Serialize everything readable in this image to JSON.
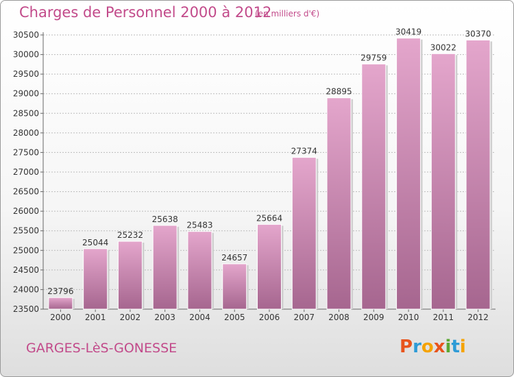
{
  "header": {
    "title": "Charges de Personnel 2000 à 2012",
    "subtitle": "(en milliers d'€)"
  },
  "footer": {
    "city": "GARGES-LèS-GONESSE",
    "logo_text": "Proxiti",
    "logo_colors": [
      "#e8541c",
      "#2e9bd6",
      "#f5a300",
      "#e8541c",
      "#5aa832",
      "#2e9bd6",
      "#f5a300"
    ]
  },
  "colors": {
    "accent": "#c24a8a",
    "bar_top": "#e4a6cc",
    "bar_bottom": "#a6668f",
    "grid": "#bbbbbb"
  },
  "chart_data": {
    "type": "bar",
    "categories": [
      "2000",
      "2001",
      "2002",
      "2003",
      "2004",
      "2005",
      "2006",
      "2007",
      "2008",
      "2009",
      "2010",
      "2011",
      "2012"
    ],
    "values": [
      23796,
      25044,
      25232,
      25638,
      25483,
      24657,
      25664,
      27374,
      28895,
      29759,
      30419,
      30022,
      30370
    ],
    "yticks": [
      23500,
      24000,
      24500,
      25000,
      25500,
      26000,
      26500,
      27000,
      27500,
      28000,
      28500,
      29000,
      29500,
      30000,
      30500
    ],
    "ylim": [
      23500,
      30500
    ],
    "grid": true,
    "data_labels": true
  }
}
